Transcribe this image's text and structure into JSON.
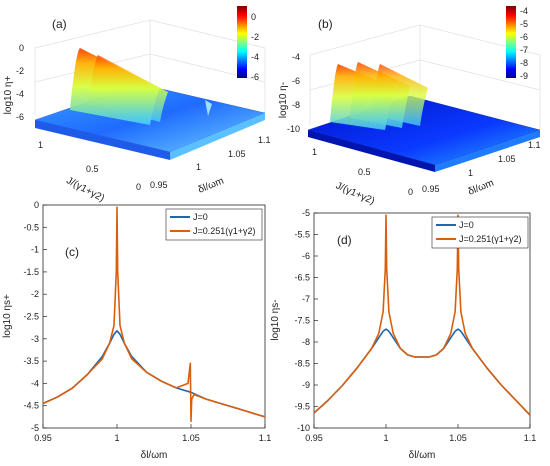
{
  "chart_data": [
    {
      "type": "surface3d",
      "panel_label": "(a)",
      "zlabel": "log10 η+",
      "ylabel": "J/(γ1+γ2)",
      "xlabel": "δl/ωm",
      "x_ticks": [
        "0.95",
        "1",
        "1.05",
        "1.1"
      ],
      "y_ticks": [
        "0",
        "0.5",
        "1"
      ],
      "z_ticks": [
        "-6",
        "-4",
        "-2",
        "0"
      ],
      "xlim": [
        0.95,
        1.1
      ],
      "ylim": [
        0,
        1
      ],
      "zlim": [
        -6,
        0
      ],
      "colorbar_ticks": [
        "0",
        "-2",
        "-4",
        "-6"
      ],
      "colorbar_range": [
        -6,
        0
      ],
      "colormap": "jet"
    },
    {
      "type": "surface3d",
      "panel_label": "(b)",
      "zlabel": "log10 η-",
      "ylabel": "J/(γ1+γ2)",
      "xlabel": "δl/ωm",
      "x_ticks": [
        "0.95",
        "1",
        "1.05",
        "1.1"
      ],
      "y_ticks": [
        "0",
        "0.5",
        "1"
      ],
      "z_ticks": [
        "-10",
        "-8",
        "-6",
        "-4"
      ],
      "xlim": [
        0.95,
        1.1
      ],
      "ylim": [
        0,
        1
      ],
      "zlim": [
        -10,
        -4
      ],
      "colorbar_ticks": [
        "-4",
        "-5",
        "-6",
        "-7",
        "-8",
        "-9"
      ],
      "colorbar_range": [
        -9.5,
        -4
      ],
      "colormap": "jet"
    },
    {
      "type": "line",
      "panel_label": "(c)",
      "xlabel": "δl/ωm",
      "ylabel": "log10 ηs+",
      "xlim": [
        0.95,
        1.1
      ],
      "ylim": [
        -5,
        0
      ],
      "x_ticks": [
        0.95,
        1,
        1.05,
        1.1
      ],
      "y_ticks": [
        0,
        -0.5,
        -1,
        -1.5,
        -2,
        -2.5,
        -3,
        -3.5,
        -4,
        -4.5,
        -5
      ],
      "legend": "top-right",
      "series": [
        {
          "name": "J=0",
          "color": "#2166ac",
          "x": [
            0.95,
            0.96,
            0.97,
            0.98,
            0.99,
            0.995,
            0.998,
            1.0,
            1.002,
            1.005,
            1.01,
            1.02,
            1.03,
            1.04,
            1.05,
            1.06,
            1.07,
            1.08,
            1.09,
            1.1
          ],
          "y": [
            -4.45,
            -4.3,
            -4.1,
            -3.8,
            -3.4,
            -3.1,
            -2.9,
            -2.82,
            -2.9,
            -3.1,
            -3.4,
            -3.75,
            -3.95,
            -4.1,
            -4.2,
            -4.35,
            -4.45,
            -4.55,
            -4.65,
            -4.75
          ]
        },
        {
          "name": "J=0.251(γ1+γ2)",
          "color": "#d95f0e",
          "x": [
            0.95,
            0.96,
            0.97,
            0.98,
            0.99,
            0.995,
            0.998,
            0.9995,
            1.0,
            1.0005,
            1.002,
            1.005,
            1.01,
            1.02,
            1.03,
            1.04,
            1.048,
            1.0495,
            1.05,
            1.0505,
            1.052,
            1.06,
            1.07,
            1.08,
            1.09,
            1.1
          ],
          "y": [
            -4.45,
            -4.3,
            -4.1,
            -3.8,
            -3.45,
            -3.1,
            -2.7,
            -1.5,
            -0.05,
            -1.5,
            -2.7,
            -3.1,
            -3.45,
            -3.75,
            -3.95,
            -4.1,
            -4.0,
            -3.55,
            -4.85,
            -4.35,
            -4.25,
            -4.35,
            -4.45,
            -4.55,
            -4.65,
            -4.75
          ]
        }
      ]
    },
    {
      "type": "line",
      "panel_label": "(d)",
      "xlabel": "δl/ωm",
      "ylabel": "log10 ηs-",
      "xlim": [
        0.95,
        1.1
      ],
      "ylim": [
        -10,
        -5
      ],
      "x_ticks": [
        0.95,
        1,
        1.05,
        1.1
      ],
      "y_ticks": [
        -5,
        -5.5,
        -6,
        -6.5,
        -7,
        -7.5,
        -8,
        -8.5,
        -9,
        -9.5,
        -10
      ],
      "legend": "top-right",
      "series": [
        {
          "name": "J=0",
          "color": "#2166ac",
          "x": [
            0.95,
            0.96,
            0.97,
            0.98,
            0.99,
            0.995,
            0.998,
            1.0,
            1.002,
            1.005,
            1.01,
            1.015,
            1.02,
            1.025,
            1.03,
            1.035,
            1.04,
            1.045,
            1.048,
            1.05,
            1.052,
            1.055,
            1.06,
            1.07,
            1.08,
            1.09,
            1.1
          ],
          "y": [
            -9.65,
            -9.35,
            -9.0,
            -8.6,
            -8.15,
            -7.9,
            -7.75,
            -7.7,
            -7.75,
            -7.9,
            -8.15,
            -8.3,
            -8.35,
            -8.35,
            -8.35,
            -8.3,
            -8.15,
            -7.9,
            -7.75,
            -7.7,
            -7.75,
            -7.9,
            -8.15,
            -8.6,
            -9.0,
            -9.35,
            -9.7
          ]
        },
        {
          "name": "J=0.251(γ1+γ2)",
          "color": "#d95f0e",
          "x": [
            0.95,
            0.96,
            0.97,
            0.98,
            0.99,
            0.995,
            0.998,
            0.9995,
            1.0,
            1.0005,
            1.002,
            1.005,
            1.01,
            1.015,
            1.02,
            1.025,
            1.03,
            1.035,
            1.04,
            1.045,
            1.048,
            1.0495,
            1.05,
            1.0505,
            1.052,
            1.055,
            1.06,
            1.07,
            1.08,
            1.09,
            1.1
          ],
          "y": [
            -9.65,
            -9.35,
            -9.0,
            -8.6,
            -8.15,
            -7.8,
            -7.3,
            -6.3,
            -5.05,
            -6.3,
            -7.3,
            -7.8,
            -8.15,
            -8.3,
            -8.35,
            -8.35,
            -8.35,
            -8.3,
            -8.15,
            -7.8,
            -7.3,
            -6.3,
            -5.05,
            -6.3,
            -7.3,
            -7.8,
            -8.15,
            -8.6,
            -9.0,
            -9.35,
            -9.7
          ]
        }
      ]
    }
  ]
}
